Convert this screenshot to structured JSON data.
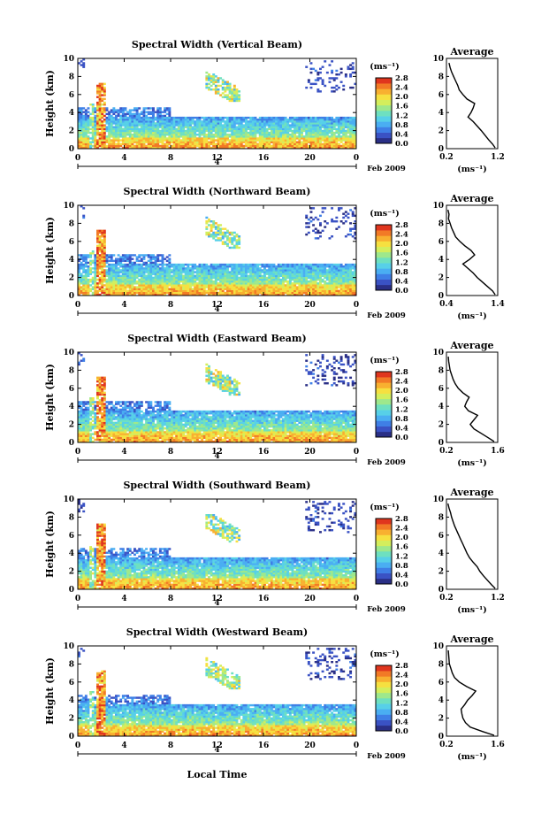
{
  "figure": {
    "xlabel": "Local Time",
    "date_label": "Feb 2009",
    "colorbar_unit": "(ms⁻¹)",
    "colorbar_ticks": [
      "0.0",
      "0.4",
      "0.8",
      "1.2",
      "1.6",
      "2.0",
      "2.4",
      "2.8"
    ],
    "profile_title": "Average",
    "profile_xlabel": "(ms⁻¹)",
    "day_marker": "4",
    "colors": {
      "palette": [
        "#2a2f86",
        "#3a52c4",
        "#3f7fe6",
        "#4aaef2",
        "#57d0e8",
        "#6ee0c0",
        "#9ee88c",
        "#d4ee5c",
        "#f6e040",
        "#f8b030",
        "#f27a26",
        "#e0361e"
      ]
    }
  },
  "chart_data": [
    {
      "type": "heatmap",
      "title": "Spectral Width (Vertical Beam)",
      "ylabel": "Height (km)",
      "xlim": [
        0,
        24
      ],
      "ylim": [
        0,
        10
      ],
      "xticks": [
        "0",
        "4",
        "8",
        "12",
        "16",
        "20",
        "0"
      ],
      "yticks": [
        "0",
        "2",
        "4",
        "6",
        "8",
        "10"
      ],
      "clim": [
        0,
        2.8
      ],
      "profile": {
        "xticks": [
          "0.2",
          "1.2"
        ],
        "xlim": [
          0.2,
          1.2
        ],
        "points": [
          [
            1.15,
            0.1
          ],
          [
            1.1,
            0.5
          ],
          [
            1.02,
            1.0
          ],
          [
            0.95,
            1.5
          ],
          [
            0.88,
            2.0
          ],
          [
            0.8,
            2.5
          ],
          [
            0.72,
            3.0
          ],
          [
            0.62,
            3.5
          ],
          [
            0.68,
            4.0
          ],
          [
            0.72,
            4.5
          ],
          [
            0.75,
            5.0
          ],
          [
            0.6,
            5.5
          ],
          [
            0.52,
            6.0
          ],
          [
            0.45,
            6.5
          ],
          [
            0.42,
            7.0
          ],
          [
            0.38,
            7.5
          ],
          [
            0.34,
            8.0
          ],
          [
            0.3,
            8.5
          ],
          [
            0.27,
            9.0
          ],
          [
            0.25,
            9.5
          ]
        ]
      }
    },
    {
      "type": "heatmap",
      "title": "Spectral Width (Northward Beam)",
      "ylabel": "Height (km)",
      "xlim": [
        0,
        24
      ],
      "ylim": [
        0,
        10
      ],
      "xticks": [
        "0",
        "4",
        "8",
        "12",
        "16",
        "20",
        "0"
      ],
      "yticks": [
        "0",
        "2",
        "4",
        "6",
        "8",
        "10"
      ],
      "clim": [
        0,
        2.8
      ],
      "profile": {
        "xticks": [
          "0.4",
          "1.4"
        ],
        "xlim": [
          0.4,
          1.4
        ],
        "points": [
          [
            1.35,
            0.1
          ],
          [
            1.3,
            0.5
          ],
          [
            1.2,
            1.0
          ],
          [
            1.1,
            1.5
          ],
          [
            1.0,
            2.0
          ],
          [
            0.92,
            2.5
          ],
          [
            0.82,
            3.0
          ],
          [
            0.72,
            3.5
          ],
          [
            0.85,
            4.0
          ],
          [
            0.95,
            4.5
          ],
          [
            0.88,
            5.0
          ],
          [
            0.76,
            5.5
          ],
          [
            0.66,
            6.0
          ],
          [
            0.58,
            6.5
          ],
          [
            0.54,
            7.0
          ],
          [
            0.5,
            7.5
          ],
          [
            0.47,
            8.0
          ],
          [
            0.44,
            8.5
          ],
          [
            0.45,
            9.0
          ],
          [
            0.43,
            9.5
          ]
        ]
      }
    },
    {
      "type": "heatmap",
      "title": "Spectral Width (Eastward Beam)",
      "ylabel": "Height (km)",
      "xlim": [
        0,
        24
      ],
      "ylim": [
        0,
        10
      ],
      "xticks": [
        "0",
        "4",
        "8",
        "12",
        "16",
        "20",
        "0"
      ],
      "yticks": [
        "0",
        "2",
        "4",
        "6",
        "8",
        "10"
      ],
      "clim": [
        0,
        2.8
      ],
      "profile": {
        "xticks": [
          "0.2",
          "1.6"
        ],
        "xlim": [
          0.2,
          1.6
        ],
        "points": [
          [
            1.5,
            0.1
          ],
          [
            1.35,
            0.5
          ],
          [
            1.15,
            1.0
          ],
          [
            0.95,
            1.5
          ],
          [
            0.85,
            2.0
          ],
          [
            0.95,
            2.5
          ],
          [
            1.05,
            3.0
          ],
          [
            0.8,
            3.5
          ],
          [
            0.7,
            4.0
          ],
          [
            0.75,
            4.5
          ],
          [
            0.82,
            5.0
          ],
          [
            0.65,
            5.5
          ],
          [
            0.52,
            6.0
          ],
          [
            0.44,
            6.5
          ],
          [
            0.38,
            7.0
          ],
          [
            0.34,
            7.5
          ],
          [
            0.3,
            8.0
          ],
          [
            0.28,
            8.5
          ],
          [
            0.26,
            9.0
          ],
          [
            0.25,
            9.5
          ]
        ]
      }
    },
    {
      "type": "heatmap",
      "title": "Spectral Width (Southward Beam)",
      "ylabel": "Height (km)",
      "xlim": [
        0,
        24
      ],
      "ylim": [
        0,
        10
      ],
      "xticks": [
        "0",
        "4",
        "8",
        "12",
        "16",
        "20",
        "0"
      ],
      "yticks": [
        "0",
        "2",
        "4",
        "6",
        "8",
        "10"
      ],
      "clim": [
        0,
        2.8
      ],
      "profile": {
        "xticks": [
          "0.2",
          "1.2"
        ],
        "xlim": [
          0.2,
          1.2
        ],
        "points": [
          [
            1.15,
            0.1
          ],
          [
            1.08,
            0.5
          ],
          [
            1.0,
            1.0
          ],
          [
            0.92,
            1.5
          ],
          [
            0.85,
            2.0
          ],
          [
            0.8,
            2.5
          ],
          [
            0.72,
            3.0
          ],
          [
            0.65,
            3.5
          ],
          [
            0.6,
            4.0
          ],
          [
            0.56,
            4.5
          ],
          [
            0.52,
            5.0
          ],
          [
            0.48,
            5.5
          ],
          [
            0.44,
            6.0
          ],
          [
            0.4,
            6.5
          ],
          [
            0.36,
            7.0
          ],
          [
            0.33,
            7.5
          ],
          [
            0.3,
            8.0
          ],
          [
            0.28,
            8.5
          ],
          [
            0.25,
            9.0
          ],
          [
            0.23,
            9.5
          ]
        ]
      }
    },
    {
      "type": "heatmap",
      "title": "Spectral Width (Westward Beam)",
      "ylabel": "Height (km)",
      "xlim": [
        0,
        24
      ],
      "ylim": [
        0,
        10
      ],
      "xticks": [
        "0",
        "4",
        "8",
        "12",
        "16",
        "20",
        "0"
      ],
      "yticks": [
        "0",
        "2",
        "4",
        "6",
        "8",
        "10"
      ],
      "clim": [
        0,
        2.8
      ],
      "profile": {
        "xticks": [
          "0.2",
          "1.6"
        ],
        "xlim": [
          0.2,
          1.6
        ],
        "points": [
          [
            1.5,
            0.1
          ],
          [
            1.2,
            0.5
          ],
          [
            0.85,
            1.0
          ],
          [
            0.72,
            1.5
          ],
          [
            0.65,
            2.0
          ],
          [
            0.62,
            2.5
          ],
          [
            0.6,
            3.0
          ],
          [
            0.7,
            3.5
          ],
          [
            0.78,
            4.0
          ],
          [
            0.9,
            4.5
          ],
          [
            1.0,
            5.0
          ],
          [
            0.75,
            5.5
          ],
          [
            0.55,
            6.0
          ],
          [
            0.42,
            6.5
          ],
          [
            0.36,
            7.0
          ],
          [
            0.32,
            7.5
          ],
          [
            0.28,
            8.0
          ],
          [
            0.27,
            8.5
          ],
          [
            0.26,
            9.0
          ],
          [
            0.25,
            9.5
          ]
        ]
      }
    }
  ]
}
